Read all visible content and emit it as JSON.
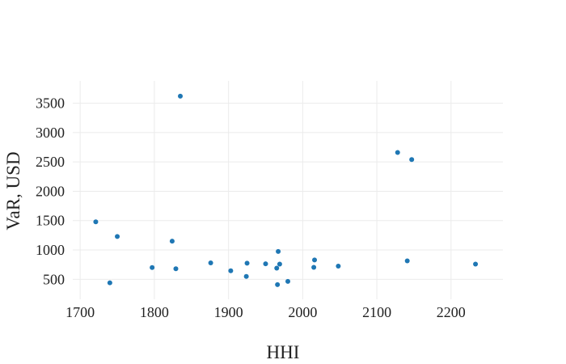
{
  "chart_data": {
    "type": "scatter",
    "title": "",
    "xlabel": "HHI",
    "ylabel": "VaR, USD",
    "xlim": [
      1690,
      2270
    ],
    "ylim": [
      160,
      3880
    ],
    "xticks": [
      1700,
      1800,
      1900,
      2000,
      2100,
      2200
    ],
    "yticks": [
      500,
      1000,
      1500,
      2000,
      2500,
      3000,
      3500
    ],
    "grid": true,
    "legend": "none",
    "marker_color": "#1f77b4",
    "points": [
      {
        "x": 1721,
        "y": 1480
      },
      {
        "x": 1740,
        "y": 440
      },
      {
        "x": 1750,
        "y": 1230
      },
      {
        "x": 1797,
        "y": 700
      },
      {
        "x": 1824,
        "y": 1150
      },
      {
        "x": 1829,
        "y": 680
      },
      {
        "x": 1835,
        "y": 3620
      },
      {
        "x": 1876,
        "y": 780
      },
      {
        "x": 1903,
        "y": 645
      },
      {
        "x": 1924,
        "y": 550
      },
      {
        "x": 1925,
        "y": 775
      },
      {
        "x": 1950,
        "y": 765
      },
      {
        "x": 1965,
        "y": 690
      },
      {
        "x": 1966,
        "y": 410
      },
      {
        "x": 1967,
        "y": 975
      },
      {
        "x": 1969,
        "y": 760
      },
      {
        "x": 1980,
        "y": 465
      },
      {
        "x": 2015,
        "y": 705
      },
      {
        "x": 2016,
        "y": 830
      },
      {
        "x": 2048,
        "y": 725
      },
      {
        "x": 2128,
        "y": 2660
      },
      {
        "x": 2141,
        "y": 815
      },
      {
        "x": 2147,
        "y": 2540
      },
      {
        "x": 2233,
        "y": 760
      }
    ]
  }
}
